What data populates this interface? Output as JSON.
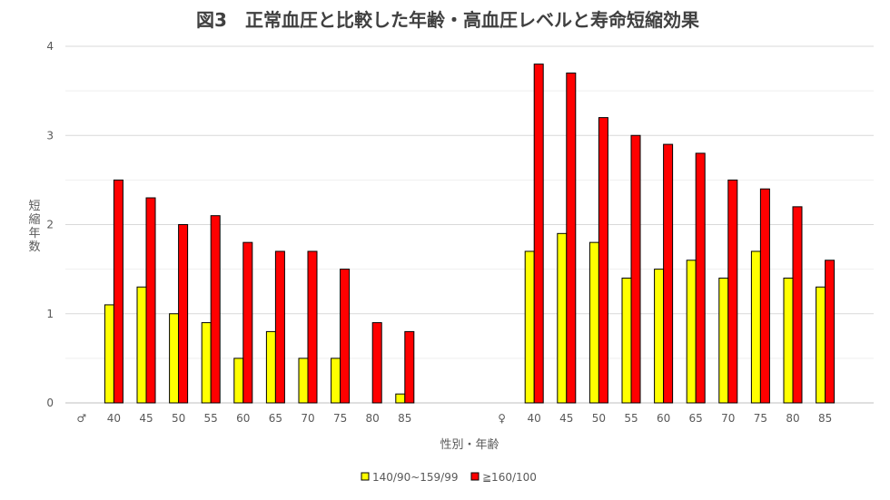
{
  "chart_data": {
    "type": "bar",
    "title": "図3　正常血圧と比較した年齢・高血圧レベルと寿命短縮効果",
    "xlabel": "性別・年齢",
    "ylabel": "短縮年数",
    "ylim": [
      0,
      4
    ],
    "y_ticks": [
      "0",
      "1",
      "2",
      "3",
      "4"
    ],
    "grid": true,
    "legend_position": "bottom",
    "groups": [
      {
        "label": "♂",
        "categories": [
          "40",
          "45",
          "50",
          "55",
          "60",
          "65",
          "70",
          "75",
          "80",
          "85"
        ]
      },
      {
        "label": "♀",
        "categories": [
          "40",
          "45",
          "50",
          "55",
          "60",
          "65",
          "70",
          "75",
          "80",
          "85"
        ]
      }
    ],
    "series": [
      {
        "name": "140/90~159/99",
        "color": "#FFFF00",
        "values": [
          1.1,
          1.3,
          1.0,
          0.9,
          0.5,
          0.8,
          0.5,
          0.5,
          0.0,
          0.1,
          1.7,
          1.9,
          1.8,
          1.4,
          1.5,
          1.6,
          1.4,
          1.7,
          1.4,
          1.3
        ]
      },
      {
        "name": "≧160/100",
        "color": "#FF0000",
        "values": [
          2.5,
          2.3,
          2.0,
          2.1,
          1.8,
          1.7,
          1.7,
          1.5,
          0.9,
          0.8,
          3.8,
          3.7,
          3.2,
          3.0,
          2.9,
          2.8,
          2.5,
          2.4,
          2.2,
          1.6
        ]
      }
    ]
  }
}
